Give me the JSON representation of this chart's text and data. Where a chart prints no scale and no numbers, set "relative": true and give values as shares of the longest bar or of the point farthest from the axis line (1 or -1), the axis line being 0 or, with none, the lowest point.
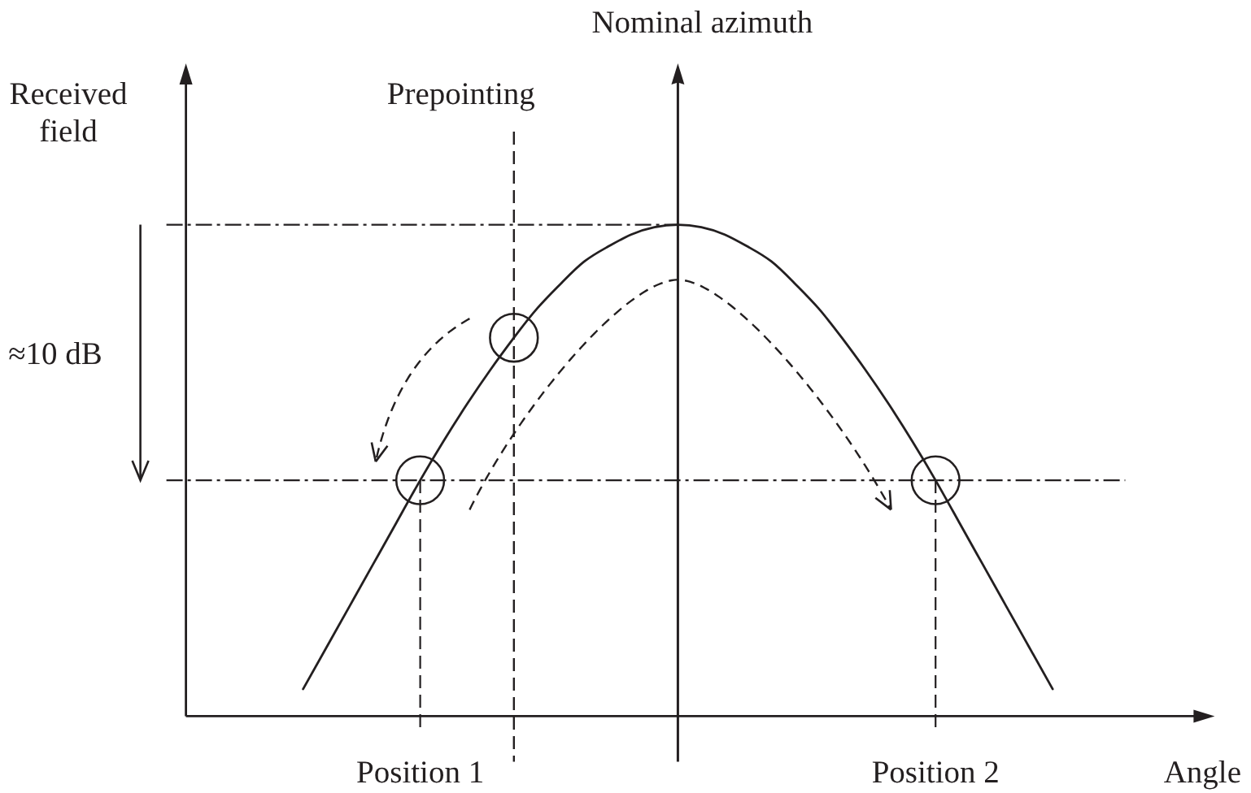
{
  "chart_data": {
    "type": "line",
    "relative": true,
    "xlabel": "Angle",
    "ylabel": "Received field",
    "categories": [
      null,
      null,
      null,
      null,
      null,
      null,
      null,
      null,
      null,
      null,
      "Position 1",
      null,
      null,
      null,
      null,
      null,
      null,
      null,
      null,
      null,
      null,
      null,
      null,
      null,
      null,
      null,
      null,
      null,
      null,
      null,
      null,
      null,
      "Position 2",
      null,
      null,
      null,
      null,
      null,
      null,
      null,
      null,
      null,
      null,
      null
    ],
    "series": [
      {
        "color": "#231f20",
        "values": [
          null,
          null,
          null,
          null,
          null,
          0.055,
          0.14,
          0.225,
          0.31,
          0.395,
          0.48,
          0.56,
          0.635,
          0.705,
          0.77,
          0.83,
          0.88,
          0.925,
          0.955,
          0.98,
          0.995,
          1,
          0.995,
          0.98,
          0.955,
          0.925,
          0.88,
          0.83,
          0.77,
          0.705,
          0.635,
          0.56,
          0.48,
          0.395,
          0.31,
          0.225,
          0.14,
          0.055,
          null,
          null,
          null,
          null,
          null,
          null
        ]
      },
      {
        "type": "scatter",
        "color": "#231f20",
        "marker": "circle",
        "values": [
          null,
          null,
          null,
          null,
          null,
          null,
          null,
          null,
          null,
          null,
          0.48,
          null,
          null,
          null,
          0.77,
          null,
          null,
          null,
          null,
          null,
          null,
          null,
          null,
          null,
          null,
          null,
          null,
          null,
          null,
          null,
          null,
          null,
          0.48,
          null,
          null,
          null,
          null,
          null,
          null,
          null,
          null,
          null,
          null,
          null
        ]
      }
    ],
    "ref_lines": [
      {
        "axis": "y",
        "value": 1
      },
      {
        "axis": "y",
        "value": 0.48
      },
      {
        "axis": "x",
        "value": "Position 1",
        "line_style": "dashed"
      },
      {
        "axis": "x",
        "value": "Position 2",
        "line_style": "dashed"
      }
    ],
    "annotations": [
      "Nominal azimuth",
      "Prepointing",
      "≈10 dB"
    ]
  }
}
